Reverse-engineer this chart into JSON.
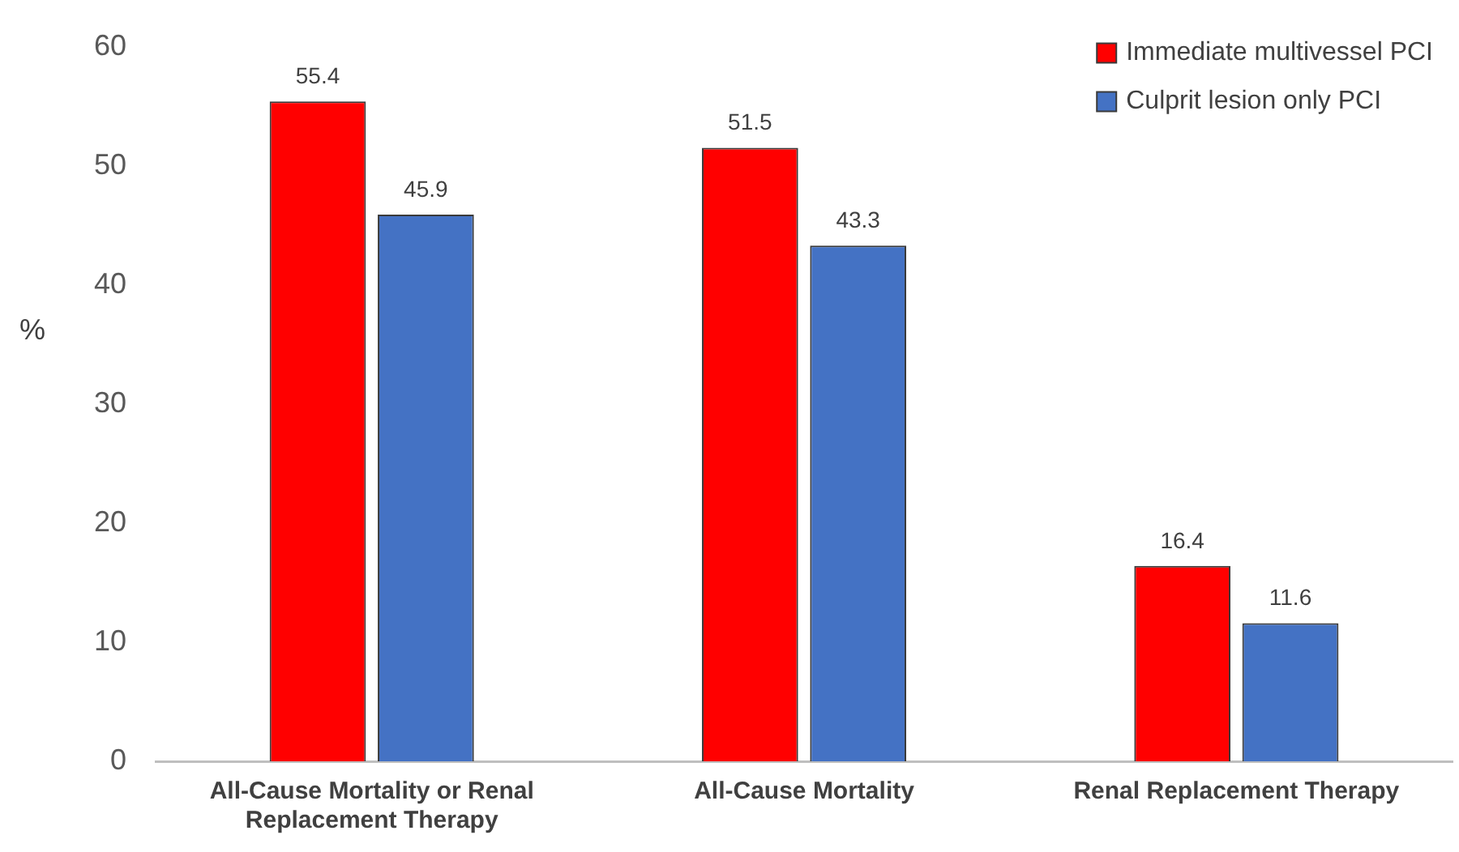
{
  "chart_data": {
    "type": "bar",
    "ylabel": "%",
    "categories": [
      "All-Cause Mortality or Renal Replacement Therapy",
      "All-Cause Mortality",
      "Renal Replacement Therapy"
    ],
    "series": [
      {
        "name": "Immediate multivessel PCI",
        "color": "#ff0000",
        "values": [
          55.4,
          51.5,
          16.4
        ]
      },
      {
        "name": "Culprit lesion only PCI",
        "color": "#4472c4",
        "values": [
          45.9,
          43.3,
          11.6
        ]
      }
    ],
    "ylim": [
      0,
      60
    ],
    "yticks": [
      0,
      10,
      20,
      30,
      40,
      50,
      60
    ],
    "grid": false,
    "legend": "top right",
    "data_labels": true
  }
}
